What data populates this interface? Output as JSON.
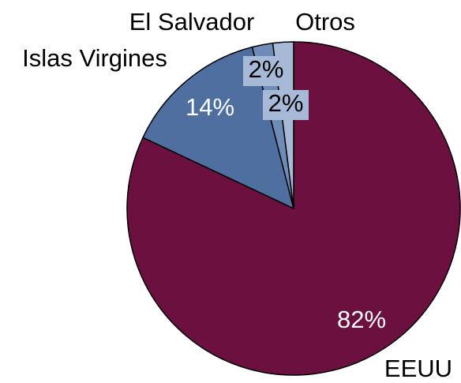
{
  "chart_data": {
    "type": "pie",
    "categories": [
      "EEUU",
      "Islas Virgines",
      "El Salvador",
      "Otros"
    ],
    "values": [
      82,
      14,
      2,
      2
    ],
    "value_labels": [
      "82%",
      "14%",
      "2%",
      "2%"
    ],
    "colors": [
      "#6b103f",
      "#4e6f9f",
      "#6f8cb8",
      "#a6b9d6"
    ]
  }
}
